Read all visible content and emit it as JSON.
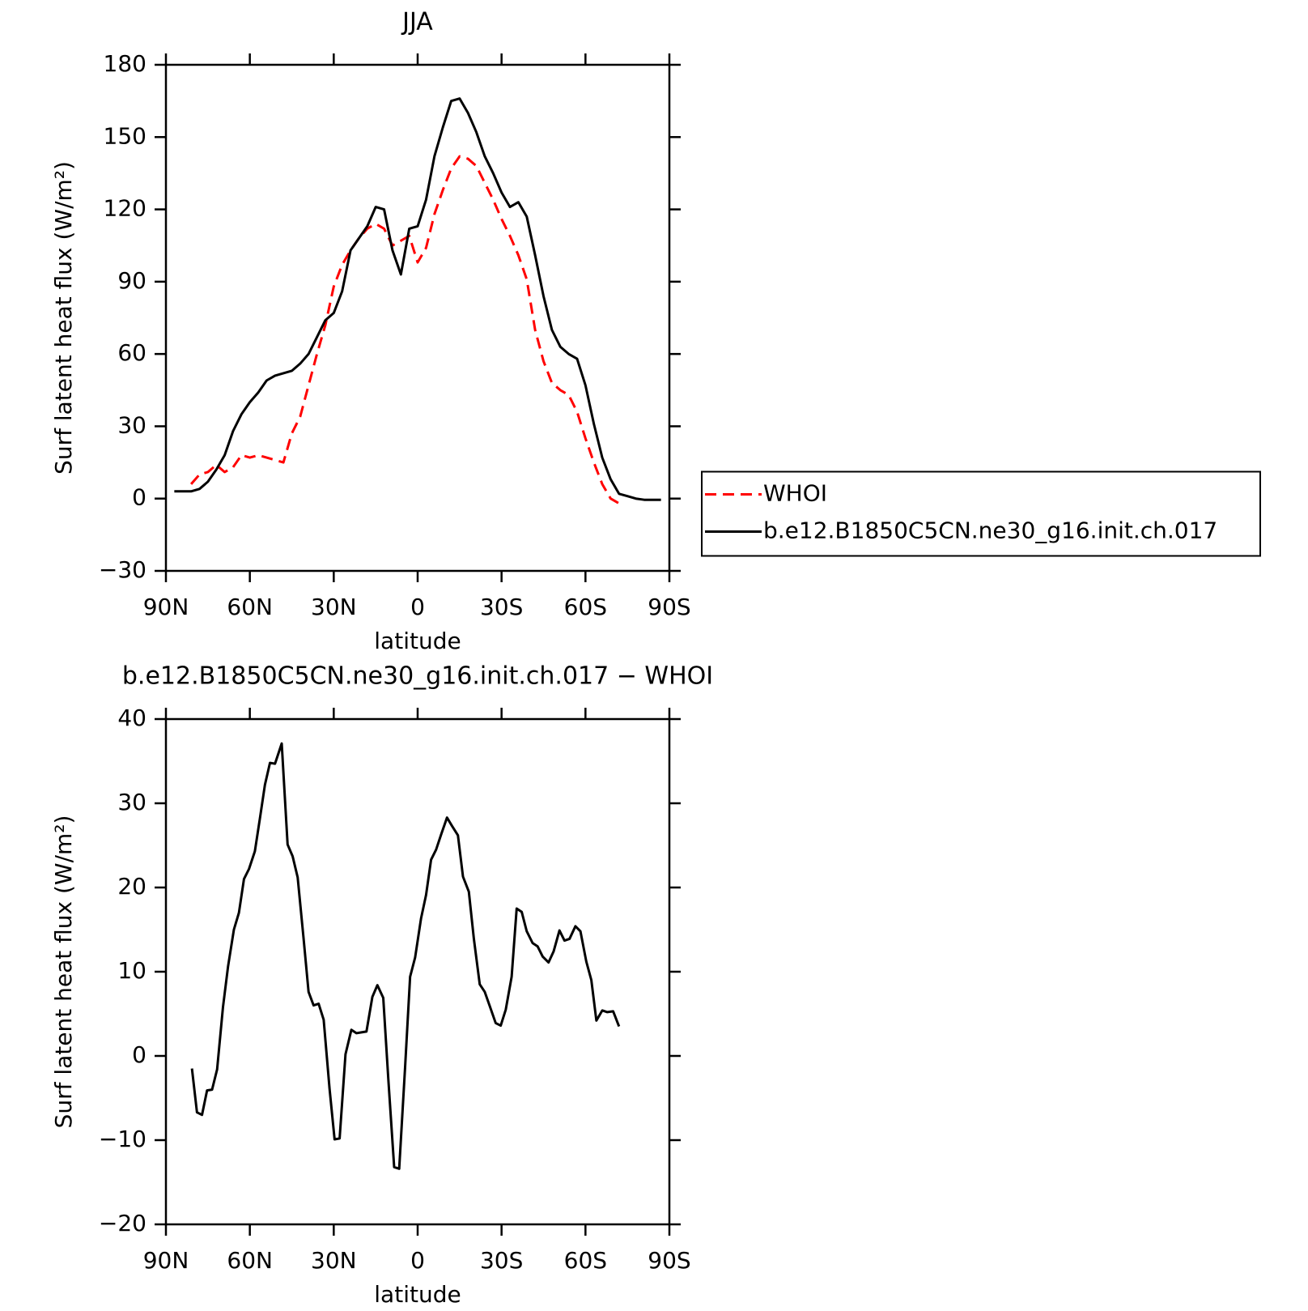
{
  "chart_data": [
    {
      "type": "line",
      "title": "JJA",
      "x_label": "latitude",
      "y_label": "Surf latent heat flux (W/m²)",
      "x": [
        87,
        84,
        81,
        78,
        75,
        72,
        69,
        66,
        63,
        60,
        57,
        54,
        51,
        48,
        45,
        42,
        39,
        36,
        33,
        30,
        27,
        24,
        21,
        18,
        15,
        12,
        9,
        6,
        3,
        0,
        -3,
        -6,
        -9,
        -12,
        -15,
        -18,
        -21,
        -24,
        -27,
        -30,
        -33,
        -36,
        -39,
        -42,
        -45,
        -48,
        -51,
        -54,
        -57,
        -60,
        -63,
        -66,
        -69,
        -72,
        -75,
        -78,
        -81,
        -84,
        -87
      ],
      "series": [
        {
          "name": "WHOI",
          "color": "#ff0000",
          "linestyle": "dashed",
          "values": [
            null,
            null,
            6,
            10,
            11,
            14,
            11,
            13,
            18,
            17,
            18,
            17,
            16,
            15,
            27,
            34,
            47,
            60,
            72,
            88,
            97,
            103,
            108,
            112,
            114,
            112,
            105,
            107,
            109,
            98,
            104,
            118,
            128,
            137,
            142,
            141,
            138,
            131,
            124,
            116,
            109,
            101,
            91,
            70,
            57,
            48,
            45,
            43,
            36,
            25,
            15,
            6,
            0,
            -2,
            null,
            null,
            null,
            null,
            null
          ]
        },
        {
          "name": "b.e12.B1850C5CN.ne30_g16.init.ch.017",
          "color": "#000000",
          "linestyle": "solid",
          "values": [
            3,
            3,
            3,
            4,
            7,
            12,
            18,
            28,
            35,
            40,
            44,
            49,
            51,
            52,
            53,
            56,
            60,
            67,
            74,
            77,
            86,
            103,
            108,
            113,
            121,
            120,
            103,
            93,
            112,
            113,
            124,
            142,
            154,
            165,
            166,
            160,
            152,
            142,
            135,
            127,
            121,
            123,
            117,
            101,
            84,
            70,
            63,
            60,
            58,
            47,
            31,
            17,
            8,
            2,
            1,
            0,
            -0.5,
            -0.5,
            -0.5
          ]
        }
      ],
      "xlim": [
        90,
        -90
      ],
      "xticks": [
        {
          "value": 90,
          "label": "90N"
        },
        {
          "value": 60,
          "label": "60N"
        },
        {
          "value": 30,
          "label": "30N"
        },
        0,
        {
          "value": -30,
          "label": "30S"
        },
        {
          "value": -60,
          "label": "60S"
        },
        {
          "value": -90,
          "label": "90S"
        }
      ],
      "ylim": [
        -30,
        180
      ],
      "yticks": [
        {
          "value": -30,
          "label": "−30"
        },
        0,
        30,
        60,
        90,
        120,
        150,
        180
      ],
      "legend": "right"
    },
    {
      "type": "line",
      "title": "b.e12.B1850C5CN.ne30_g16.init.ch.017 − WHOI",
      "x_label": "latitude",
      "y_label": "Surf latent heat flux (W/m²)",
      "x": [
        80.7,
        78.9,
        77.1,
        75.3,
        73.5,
        71.7,
        69.6,
        67.8,
        65.7,
        63.9,
        62.1,
        60.3,
        58.2,
        56.4,
        54.6,
        52.8,
        51,
        48.6,
        46.5,
        44.7,
        42.9,
        40.8,
        39,
        37.2,
        35.4,
        33.6,
        31.5,
        29.7,
        27.9,
        25.8,
        23.7,
        21.9,
        20.1,
        18.3,
        16.2,
        14.4,
        12.3,
        10.5,
        8.4,
        6.6,
        4.5,
        2.7,
        0.9,
        -1.2,
        -3,
        -4.8,
        -6.6,
        -8.4,
        -10.5,
        -12.3,
        -14.4,
        -16.2,
        -18.3,
        -20.1,
        -22.2,
        -24,
        -25.8,
        -27.9,
        -29.7,
        -31.5,
        -33.6,
        -35.4,
        -37.2,
        -39,
        -41.1,
        -42.9,
        -44.7,
        -46.8,
        -48.6,
        -50.7,
        -52.5,
        -54.3,
        -56.4,
        -58.2,
        -60.3,
        -62.1,
        -63.9,
        -66,
        -67.8,
        -69.9,
        -72
      ],
      "color": "#000000",
      "values": [
        -1.5,
        -6.7,
        -7,
        -4.1,
        -4,
        -1.6,
        5.8,
        10.6,
        15,
        17,
        21,
        22.2,
        24.3,
        28.2,
        32.2,
        34.8,
        34.7,
        37.1,
        25.1,
        23.7,
        21.2,
        14,
        7.6,
        6,
        6.2,
        4.3,
        -3.9,
        -9.9,
        -9.8,
        0.2,
        3.1,
        2.7,
        2.8,
        2.9,
        7,
        8.4,
        6.9,
        -2.7,
        -13.2,
        -13.4,
        -1.4,
        9.4,
        11.7,
        16.3,
        19.1,
        23.3,
        24.5,
        26.3,
        28.3,
        27.3,
        26.2,
        21.3,
        19.5,
        13.9,
        8.5,
        7.6,
        5.9,
        3.9,
        3.6,
        5.5,
        9.4,
        17.5,
        17.1,
        14.8,
        13.4,
        13,
        11.8,
        11.1,
        12.4,
        14.9,
        13.7,
        13.9,
        15.4,
        14.8,
        11.2,
        9,
        4.2,
        5.4,
        5.2,
        5.3,
        3.5
      ],
      "xlim": [
        90,
        -90
      ],
      "xticks": [
        {
          "value": 90,
          "label": "90N"
        },
        {
          "value": 60,
          "label": "60N"
        },
        {
          "value": 30,
          "label": "30N"
        },
        0,
        {
          "value": -30,
          "label": "30S"
        },
        {
          "value": -60,
          "label": "60S"
        },
        {
          "value": -90,
          "label": "90S"
        }
      ],
      "ylim": [
        -20,
        40
      ],
      "yticks": [
        {
          "value": -20,
          "label": "−20"
        },
        {
          "value": -10,
          "label": "−10"
        },
        0,
        10,
        20,
        30,
        40
      ]
    }
  ]
}
